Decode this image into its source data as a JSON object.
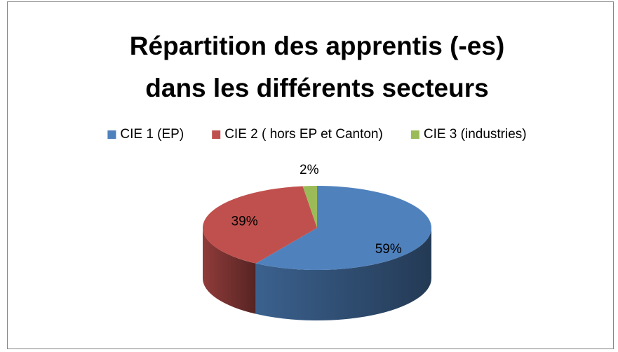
{
  "chart_data": {
    "type": "pie3d",
    "title": [
      "Répartition des apprentis (-es)",
      "dans les différents secteurs"
    ],
    "categories": [
      "CIE 1 (EP)",
      "CIE 2 ( hors EP et Canton)",
      "CIE 3 (industries)"
    ],
    "values": [
      59,
      39,
      2
    ],
    "value_labels": [
      "59%",
      "39%",
      "2%"
    ],
    "colors": [
      "#4f81bd",
      "#c0504d",
      "#9bbb59"
    ],
    "legend": "top"
  }
}
